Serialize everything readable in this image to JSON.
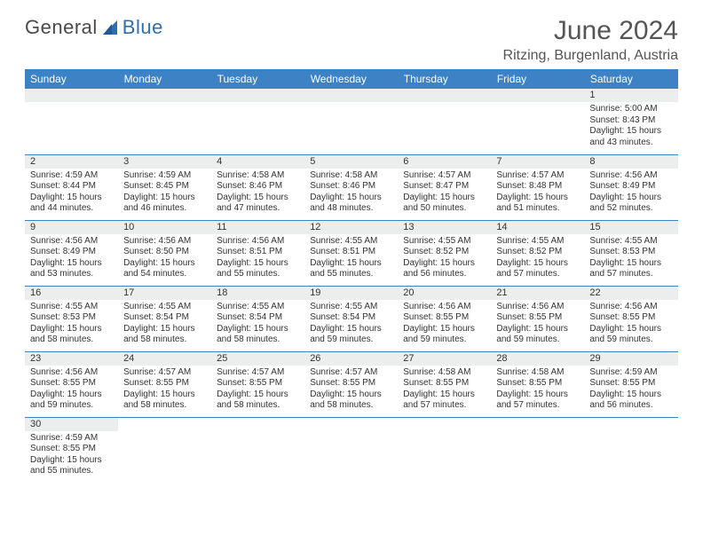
{
  "logo": {
    "word1": "General",
    "word2": "Blue"
  },
  "title": {
    "month": "June 2024",
    "location": "Ritzing, Burgenland, Austria"
  },
  "colors": {
    "header_bg": "#3c82c4",
    "header_text": "#ffffff",
    "daynum_bg": "#eceeee",
    "cell_border": "#3c82c4",
    "body_text": "#333333",
    "logo_gray": "#4a4a4a",
    "logo_blue": "#2f6fb0"
  },
  "weekdays": [
    "Sunday",
    "Monday",
    "Tuesday",
    "Wednesday",
    "Thursday",
    "Friday",
    "Saturday"
  ],
  "weeks": [
    [
      null,
      null,
      null,
      null,
      null,
      null,
      {
        "n": "1",
        "sr": "5:00 AM",
        "ss": "8:43 PM",
        "dl": "15 hours and 43 minutes."
      }
    ],
    [
      {
        "n": "2",
        "sr": "4:59 AM",
        "ss": "8:44 PM",
        "dl": "15 hours and 44 minutes."
      },
      {
        "n": "3",
        "sr": "4:59 AM",
        "ss": "8:45 PM",
        "dl": "15 hours and 46 minutes."
      },
      {
        "n": "4",
        "sr": "4:58 AM",
        "ss": "8:46 PM",
        "dl": "15 hours and 47 minutes."
      },
      {
        "n": "5",
        "sr": "4:58 AM",
        "ss": "8:46 PM",
        "dl": "15 hours and 48 minutes."
      },
      {
        "n": "6",
        "sr": "4:57 AM",
        "ss": "8:47 PM",
        "dl": "15 hours and 50 minutes."
      },
      {
        "n": "7",
        "sr": "4:57 AM",
        "ss": "8:48 PM",
        "dl": "15 hours and 51 minutes."
      },
      {
        "n": "8",
        "sr": "4:56 AM",
        "ss": "8:49 PM",
        "dl": "15 hours and 52 minutes."
      }
    ],
    [
      {
        "n": "9",
        "sr": "4:56 AM",
        "ss": "8:49 PM",
        "dl": "15 hours and 53 minutes."
      },
      {
        "n": "10",
        "sr": "4:56 AM",
        "ss": "8:50 PM",
        "dl": "15 hours and 54 minutes."
      },
      {
        "n": "11",
        "sr": "4:56 AM",
        "ss": "8:51 PM",
        "dl": "15 hours and 55 minutes."
      },
      {
        "n": "12",
        "sr": "4:55 AM",
        "ss": "8:51 PM",
        "dl": "15 hours and 55 minutes."
      },
      {
        "n": "13",
        "sr": "4:55 AM",
        "ss": "8:52 PM",
        "dl": "15 hours and 56 minutes."
      },
      {
        "n": "14",
        "sr": "4:55 AM",
        "ss": "8:52 PM",
        "dl": "15 hours and 57 minutes."
      },
      {
        "n": "15",
        "sr": "4:55 AM",
        "ss": "8:53 PM",
        "dl": "15 hours and 57 minutes."
      }
    ],
    [
      {
        "n": "16",
        "sr": "4:55 AM",
        "ss": "8:53 PM",
        "dl": "15 hours and 58 minutes."
      },
      {
        "n": "17",
        "sr": "4:55 AM",
        "ss": "8:54 PM",
        "dl": "15 hours and 58 minutes."
      },
      {
        "n": "18",
        "sr": "4:55 AM",
        "ss": "8:54 PM",
        "dl": "15 hours and 58 minutes."
      },
      {
        "n": "19",
        "sr": "4:55 AM",
        "ss": "8:54 PM",
        "dl": "15 hours and 59 minutes."
      },
      {
        "n": "20",
        "sr": "4:56 AM",
        "ss": "8:55 PM",
        "dl": "15 hours and 59 minutes."
      },
      {
        "n": "21",
        "sr": "4:56 AM",
        "ss": "8:55 PM",
        "dl": "15 hours and 59 minutes."
      },
      {
        "n": "22",
        "sr": "4:56 AM",
        "ss": "8:55 PM",
        "dl": "15 hours and 59 minutes."
      }
    ],
    [
      {
        "n": "23",
        "sr": "4:56 AM",
        "ss": "8:55 PM",
        "dl": "15 hours and 59 minutes."
      },
      {
        "n": "24",
        "sr": "4:57 AM",
        "ss": "8:55 PM",
        "dl": "15 hours and 58 minutes."
      },
      {
        "n": "25",
        "sr": "4:57 AM",
        "ss": "8:55 PM",
        "dl": "15 hours and 58 minutes."
      },
      {
        "n": "26",
        "sr": "4:57 AM",
        "ss": "8:55 PM",
        "dl": "15 hours and 58 minutes."
      },
      {
        "n": "27",
        "sr": "4:58 AM",
        "ss": "8:55 PM",
        "dl": "15 hours and 57 minutes."
      },
      {
        "n": "28",
        "sr": "4:58 AM",
        "ss": "8:55 PM",
        "dl": "15 hours and 57 minutes."
      },
      {
        "n": "29",
        "sr": "4:59 AM",
        "ss": "8:55 PM",
        "dl": "15 hours and 56 minutes."
      }
    ],
    [
      {
        "n": "30",
        "sr": "4:59 AM",
        "ss": "8:55 PM",
        "dl": "15 hours and 55 minutes."
      },
      null,
      null,
      null,
      null,
      null,
      null
    ]
  ],
  "labels": {
    "sunrise": "Sunrise: ",
    "sunset": "Sunset: ",
    "daylight": "Daylight: "
  }
}
